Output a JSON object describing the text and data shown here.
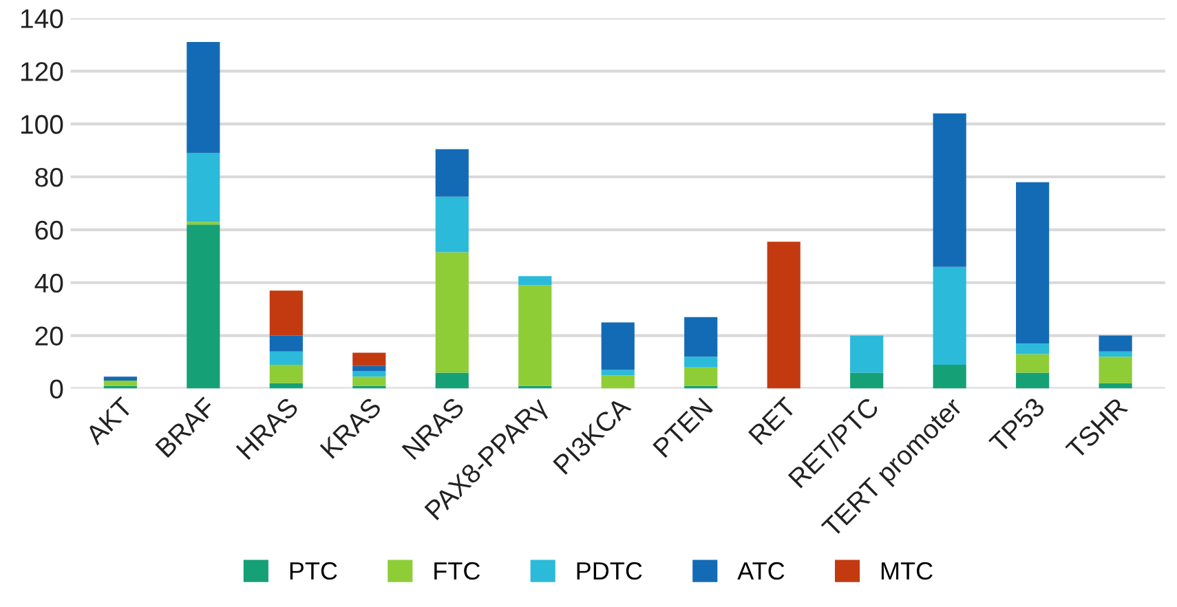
{
  "chart_data": {
    "type": "bar",
    "stacked": true,
    "categories": [
      "AKT",
      "BRAF",
      "HRAS",
      "KRAS",
      "NRAS",
      "PAX8-PPARγ",
      "PI3KCA",
      "PTEN",
      "RET",
      "RET/PTC",
      "TERT promoter",
      "TP53",
      "TSHR"
    ],
    "series": [
      {
        "name": "PTC",
        "color": "#16a075",
        "values": [
          1,
          62,
          2,
          1,
          6,
          1,
          0,
          1,
          0,
          6,
          9,
          6,
          2
        ]
      },
      {
        "name": "FTC",
        "color": "#8fcd37",
        "values": [
          2,
          1,
          7,
          3.5,
          45.5,
          38,
          5,
          7,
          0,
          0,
          0,
          7,
          10
        ]
      },
      {
        "name": "PDTC",
        "color": "#2bbada",
        "values": [
          0,
          26,
          5,
          2,
          21,
          3.5,
          2,
          4,
          0,
          14,
          37,
          4,
          2
        ]
      },
      {
        "name": "ATC",
        "color": "#146bb5",
        "values": [
          1.5,
          42,
          6,
          2,
          18,
          0,
          18,
          15,
          0,
          0,
          58,
          61,
          6
        ]
      },
      {
        "name": "MTC",
        "color": "#c33a10",
        "values": [
          0,
          0,
          17,
          5,
          0,
          0,
          0,
          0,
          55.5,
          0,
          0,
          0,
          0
        ]
      }
    ],
    "ylim": [
      0,
      140
    ],
    "yticks": [
      0,
      20,
      40,
      60,
      80,
      100,
      120,
      140
    ],
    "grid": "y",
    "legend": "bottom"
  }
}
